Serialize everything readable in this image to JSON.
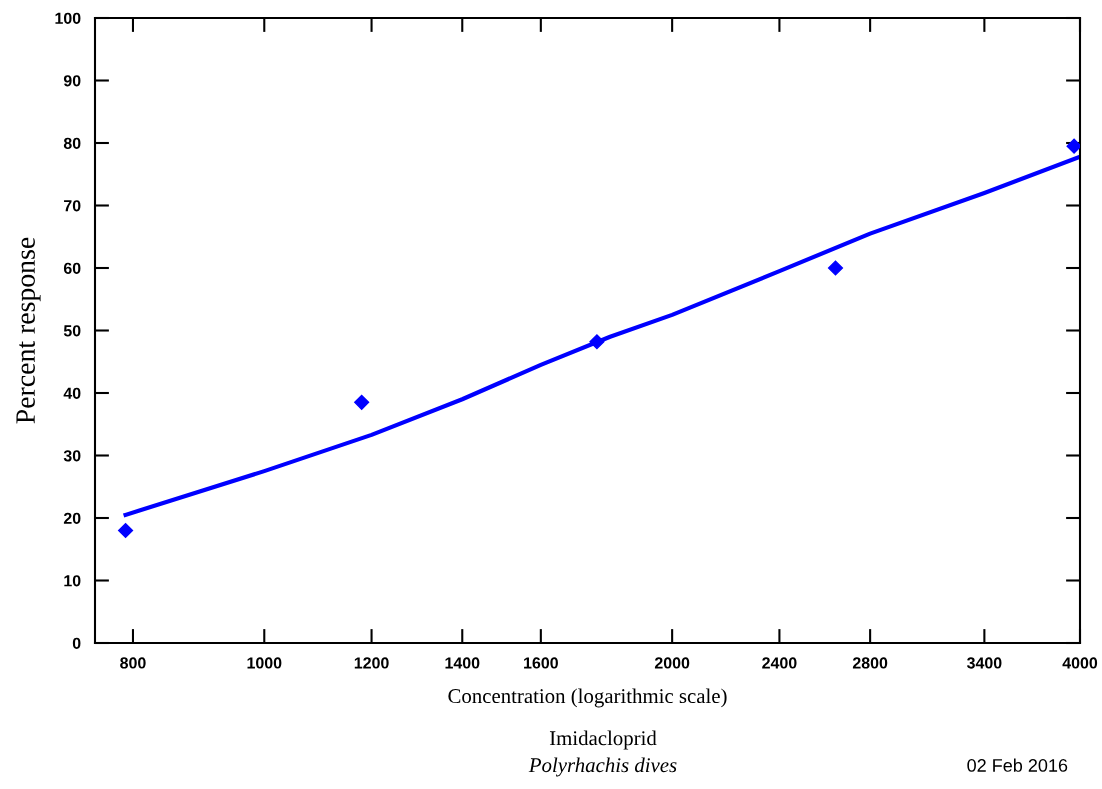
{
  "chart_data": {
    "type": "scatter",
    "xlabel": "Concentration (logarithmic scale)",
    "ylabel": "Percent response",
    "log": "x",
    "grid": false,
    "xlim": [
      750,
      4000
    ],
    "xticks": [
      800,
      1000,
      1200,
      1400,
      1600,
      2000,
      2400,
      2800,
      3400,
      4000
    ],
    "ylim": [
      0,
      100
    ],
    "yticks": [
      0,
      10,
      20,
      30,
      40,
      50,
      60,
      70,
      80,
      90,
      100
    ],
    "series": [
      {
        "marker": "diamond",
        "color": "#0000ff",
        "x": [
          790,
          1180,
          1760,
          2640,
          3960
        ],
        "values": [
          18,
          38.5,
          48.2,
          60,
          79.5
        ]
      },
      {
        "type": "line",
        "marker": "none",
        "line_style": "solid",
        "color": "#0000ff",
        "x": [
          790,
          1000,
          1200,
          1400,
          1600,
          1800,
          2000,
          2400,
          2800,
          3400,
          4000
        ],
        "values": [
          20.5,
          27.5,
          33.3,
          39,
          44.5,
          49,
          52.5,
          59.5,
          65.5,
          72,
          77.8
        ]
      }
    ],
    "annotations": [
      "Imidacloprid",
      "Polyrhachis dives",
      "02 Feb 2016"
    ]
  }
}
